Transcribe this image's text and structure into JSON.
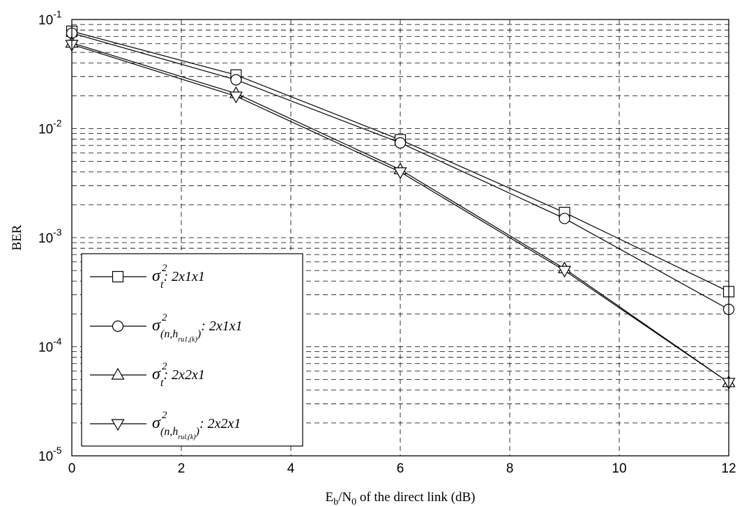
{
  "chart_data": {
    "type": "line",
    "title": "",
    "xlabel": {
      "E": "E",
      "b": "b",
      "slash": "/N",
      "zero": "0",
      "rest": " of  the direct link (dB)"
    },
    "ylabel": "BER",
    "xlim": [
      0,
      12
    ],
    "ylim": [
      1e-05,
      0.1
    ],
    "yscale": "log",
    "grid": true,
    "x_ticks": [
      "0",
      "2",
      "4",
      "6",
      "8",
      "10",
      "12"
    ],
    "y_ticks": [
      {
        "base": "10",
        "exp": "-1"
      },
      {
        "base": "10",
        "exp": "-2"
      },
      {
        "base": "10",
        "exp": "-3"
      },
      {
        "base": "10",
        "exp": "-4"
      },
      {
        "base": "10",
        "exp": "-5"
      }
    ],
    "legend_position": "bottom-left",
    "x": [
      0,
      3,
      6,
      9,
      12
    ],
    "series": [
      {
        "marker": "square",
        "legend": {
          "sigma": "σ",
          "sup": "2",
          "sub": "t",
          "sub2": "",
          "suffix": ": 2x1x1"
        },
        "values": [
          0.078,
          0.031,
          0.0079,
          0.0017,
          0.00032
        ]
      },
      {
        "marker": "circle",
        "legend": {
          "sigma": "σ",
          "sup": "2",
          "sub": "(n,h",
          "sub2": "ru1,(k)",
          "close": ")",
          "suffix": ": 2x1x1"
        },
        "values": [
          0.075,
          0.028,
          0.0074,
          0.0015,
          0.00022
        ]
      },
      {
        "marker": "triangle-up",
        "legend": {
          "sigma": "σ",
          "sup": "2",
          "sub": "t",
          "sub2": "",
          "suffix": ": 2x2x1"
        },
        "values": [
          0.061,
          0.021,
          0.0042,
          0.00052,
          4.7e-05
        ]
      },
      {
        "marker": "triangle-down",
        "legend": {
          "sigma": "σ",
          "sup": "2",
          "sub": "(n,h",
          "sub2": "rul,(k)",
          "close": ")",
          "suffix": ": 2x2x1"
        },
        "values": [
          0.059,
          0.0198,
          0.004,
          0.0005,
          4.7e-05
        ]
      }
    ]
  }
}
